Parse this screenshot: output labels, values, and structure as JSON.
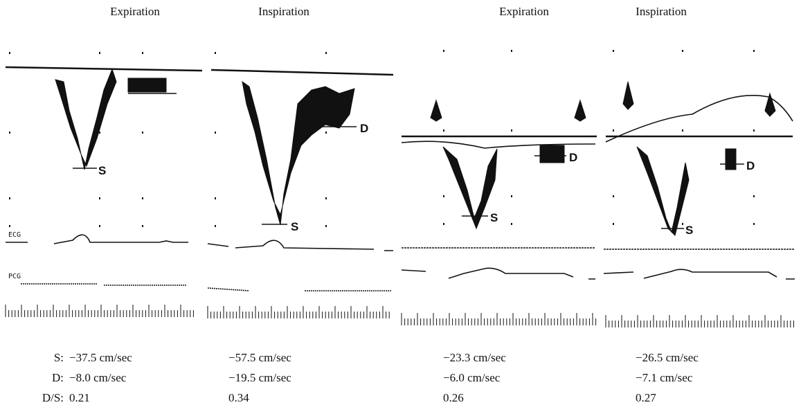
{
  "headings": [
    "Expiration",
    "Inspiration",
    "Expiration",
    "Inspiration"
  ],
  "trace_labels": {
    "ecg": "ECG",
    "pcg": "PCG"
  },
  "markers": {
    "s": "S",
    "d": "D"
  },
  "measurements": {
    "row_labels": [
      "S:",
      "D:",
      "D/S:"
    ],
    "columns": [
      [
        "−37.5 cm/sec",
        "−8.0 cm/sec",
        "0.21"
      ],
      [
        "−57.5 cm/sec",
        "−19.5 cm/sec",
        "0.34"
      ],
      [
        "−23.3 cm/sec",
        "−6.0 cm/sec",
        "0.26"
      ],
      [
        "−26.5 cm/sec",
        "−7.1 cm/sec",
        "0.27"
      ]
    ]
  }
}
